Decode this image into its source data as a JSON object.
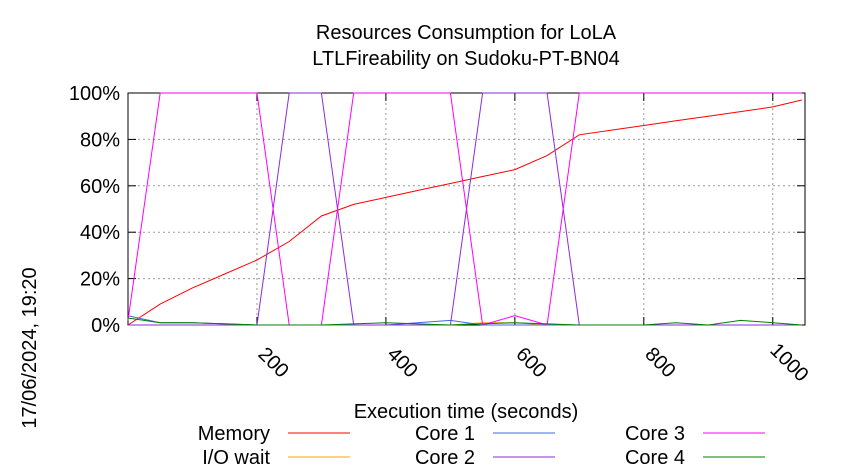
{
  "chart_data": {
    "type": "line",
    "title": "Resources Consumption for LoLA",
    "subtitle": "LTLFireability on Sudoku-PT-BN04",
    "xlabel": "Execution time (seconds)",
    "ylabel": "",
    "timestamp": "17/06/2024, 19:20",
    "xlim": [
      0,
      1050
    ],
    "ylim": [
      0,
      100
    ],
    "x_ticks": [
      200,
      400,
      600,
      800,
      1000
    ],
    "y_ticks": [
      {
        "value": 0,
        "label": "0%"
      },
      {
        "value": 20,
        "label": "20%"
      },
      {
        "value": 40,
        "label": "40%"
      },
      {
        "value": 60,
        "label": "60%"
      },
      {
        "value": 80,
        "label": "80%"
      },
      {
        "value": 100,
        "label": "100%"
      }
    ],
    "grid": true,
    "legend_position": "bottom",
    "series": [
      {
        "name": "Memory",
        "color": "#ff0000",
        "x": [
          0,
          50,
          100,
          150,
          200,
          250,
          300,
          350,
          400,
          450,
          500,
          550,
          600,
          650,
          700,
          750,
          800,
          850,
          900,
          950,
          1000,
          1045
        ],
        "y": [
          0,
          9,
          16,
          22,
          28,
          36,
          47,
          52,
          55,
          58,
          61,
          64,
          67,
          73,
          82,
          84,
          86,
          88,
          90,
          92,
          94,
          97
        ]
      },
      {
        "name": "I/O wait",
        "color": "#ffa500",
        "x": [
          0,
          100,
          200,
          300,
          400,
          500,
          550,
          600,
          650,
          700,
          800,
          900,
          1045
        ],
        "y": [
          0,
          0,
          0,
          0,
          0,
          0,
          1,
          1,
          0,
          0,
          0,
          0,
          0
        ]
      },
      {
        "name": "Core 1",
        "color": "#4169e1",
        "x": [
          0,
          50,
          100,
          200,
          300,
          400,
          500,
          550,
          600,
          700,
          800,
          900,
          1045
        ],
        "y": [
          4,
          1,
          1,
          0,
          0,
          0,
          2,
          0,
          0,
          0,
          0,
          0,
          0
        ]
      },
      {
        "name": "Core 2",
        "color": "#8a2be2",
        "x": [
          0,
          10,
          100,
          200,
          250,
          250,
          500,
          550,
          600,
          650,
          695,
          700,
          1045
        ],
        "y": [
          0,
          0,
          0,
          0,
          0,
          0,
          0,
          0,
          0,
          0,
          0,
          0,
          0
        ]
      },
      {
        "name": "Core 3",
        "color": "#ff00ff",
        "x": [
          0,
          50,
          200,
          250,
          300,
          350,
          500,
          550,
          600,
          650,
          700,
          1045
        ],
        "y": [
          2,
          100,
          100,
          0,
          0,
          100,
          100,
          0,
          4,
          0,
          100,
          100
        ]
      },
      {
        "name": "Core 4",
        "color": "#008000",
        "x": [
          0,
          50,
          100,
          200,
          300,
          400,
          500,
          600,
          700,
          800,
          850,
          900,
          950,
          1000,
          1045
        ],
        "y": [
          3,
          1,
          1,
          0,
          0,
          1,
          0,
          1,
          0,
          0,
          1,
          0,
          2,
          1,
          0
        ]
      }
    ],
    "core2_segments": {
      "x": [
        0,
        200,
        250,
        300,
        350,
        500,
        550,
        600,
        650,
        700,
        1045
      ],
      "y": [
        0,
        0,
        100,
        100,
        0,
        0,
        100,
        100,
        100,
        0,
        0
      ]
    }
  }
}
